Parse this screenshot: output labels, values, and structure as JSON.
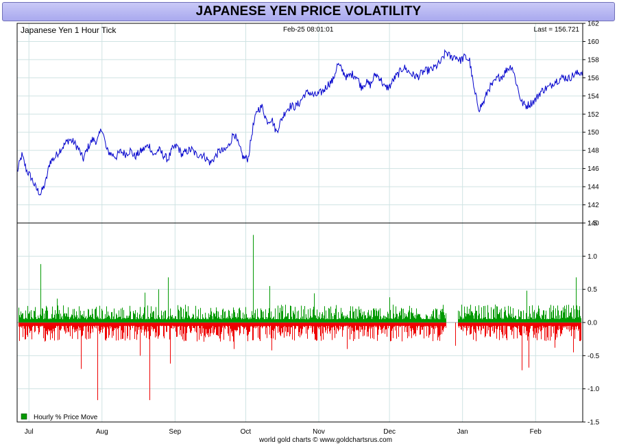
{
  "title": "JAPANESE YEN PRICE VOLATILITY",
  "footer": "world gold charts © www.goldchartsrus.com",
  "colors": {
    "title_bg": "#b5b5f2",
    "price_line": "#0000cc",
    "positive_bar": "#009900",
    "negative_bar": "#ee0000",
    "grid": "#cfe3e3"
  },
  "chart_data": [
    {
      "type": "line",
      "title": "Japanese Yen 1 Hour Tick",
      "timestamp": "Feb-25  08:01:01",
      "last_label": "Last = 156.721",
      "ylim": [
        140,
        162
      ],
      "y_ticks": [
        140,
        142,
        144,
        146,
        148,
        150,
        152,
        154,
        156,
        158,
        160,
        162
      ],
      "x_ticks": [
        "Jul",
        "Aug",
        "Sep",
        "Oct",
        "Nov",
        "Dec",
        "Jan",
        "Feb"
      ],
      "x_tick_days": [
        5,
        36,
        67,
        97,
        128,
        158,
        189,
        220
      ],
      "x_range_days": [
        0,
        240
      ],
      "series": [
        {
          "name": "Japanese Yen 1 Hour Tick",
          "days": [
            0,
            2,
            4,
            6,
            8,
            10,
            12,
            14,
            16,
            18,
            20,
            22,
            24,
            26,
            28,
            30,
            32,
            34,
            36,
            38,
            40,
            42,
            44,
            46,
            48,
            50,
            52,
            54,
            56,
            58,
            60,
            62,
            64,
            66,
            68,
            70,
            72,
            74,
            76,
            78,
            80,
            82,
            84,
            86,
            88,
            90,
            92,
            94,
            96,
            98,
            100,
            102,
            104,
            106,
            108,
            110,
            112,
            114,
            116,
            118,
            120,
            122,
            124,
            126,
            128,
            130,
            132,
            134,
            136,
            138,
            140,
            142,
            144,
            146,
            148,
            150,
            152,
            154,
            156,
            158,
            160,
            162,
            164,
            166,
            168,
            170,
            172,
            174,
            176,
            178,
            180,
            182,
            184,
            186,
            188,
            190,
            192,
            194,
            196,
            198,
            200,
            202,
            204,
            206,
            208,
            210,
            212,
            214,
            216,
            218,
            220,
            222,
            224,
            226,
            228,
            230,
            232,
            234,
            236,
            238,
            240
          ],
          "values": [
            145.6,
            147.5,
            145.8,
            145.0,
            143.8,
            143.2,
            144.4,
            146.8,
            147.2,
            148.0,
            148.6,
            149.2,
            148.9,
            148.2,
            147.0,
            148.3,
            149.2,
            149.0,
            150.5,
            148.0,
            147.6,
            147.3,
            147.9,
            147.6,
            148.0,
            147.3,
            147.8,
            148.2,
            148.6,
            147.4,
            148.1,
            147.5,
            147.0,
            148.2,
            148.5,
            147.5,
            147.9,
            148.1,
            147.5,
            147.6,
            147.2,
            146.6,
            147.3,
            148.0,
            147.9,
            148.6,
            150.0,
            148.5,
            147.2,
            147.1,
            150.5,
            152.5,
            152.8,
            151.2,
            151.5,
            150.0,
            151.3,
            152.4,
            152.9,
            152.8,
            153.3,
            154.2,
            154.4,
            154.0,
            154.2,
            154.6,
            155.3,
            155.7,
            157.5,
            156.8,
            156.0,
            156.4,
            156.2,
            155.0,
            155.5,
            155.2,
            156.4,
            156.0,
            154.9,
            155.0,
            155.9,
            156.5,
            157.2,
            156.7,
            156.3,
            156.1,
            156.6,
            156.8,
            156.9,
            157.3,
            157.8,
            158.9,
            158.2,
            158.4,
            157.9,
            158.3,
            157.9,
            154.5,
            152.6,
            153.3,
            154.8,
            155.3,
            156.0,
            156.2,
            157.0,
            157.3,
            155.3,
            153.3,
            152.9,
            153.2,
            153.6,
            154.4,
            154.8,
            155.0,
            155.6,
            155.8,
            156.1,
            155.9,
            156.3,
            156.5,
            156.7
          ]
        }
      ]
    },
    {
      "type": "bar",
      "legend": "Hourly % Price Move",
      "ylim": [
        -1.5,
        1.5
      ],
      "y_ticks": [
        -1.5,
        -1.0,
        -0.5,
        0.0,
        0.5,
        1.0,
        1.5
      ],
      "spikes": [
        {
          "day": 10,
          "value": 0.88
        },
        {
          "day": 17,
          "value": 0.36
        },
        {
          "day": 27,
          "value": -0.7
        },
        {
          "day": 34,
          "value": -1.17
        },
        {
          "day": 52,
          "value": -0.5
        },
        {
          "day": 54,
          "value": 0.45
        },
        {
          "day": 56,
          "value": -1.17
        },
        {
          "day": 60,
          "value": 0.5
        },
        {
          "day": 64,
          "value": 0.68
        },
        {
          "day": 65,
          "value": -0.62
        },
        {
          "day": 92,
          "value": -0.4
        },
        {
          "day": 100,
          "value": 1.32
        },
        {
          "day": 107,
          "value": 0.55
        },
        {
          "day": 108,
          "value": -0.42
        },
        {
          "day": 126,
          "value": 0.44
        },
        {
          "day": 140,
          "value": -0.4
        },
        {
          "day": 158,
          "value": 0.38
        },
        {
          "day": 186,
          "value": -0.35
        },
        {
          "day": 214,
          "value": -0.72
        },
        {
          "day": 216,
          "value": 0.48
        },
        {
          "day": 217,
          "value": -0.68
        },
        {
          "day": 228,
          "value": -0.38
        },
        {
          "day": 236,
          "value": -0.45
        },
        {
          "day": 237,
          "value": 0.68
        }
      ],
      "gaps_days": [
        [
          182,
          187
        ]
      ]
    }
  ]
}
